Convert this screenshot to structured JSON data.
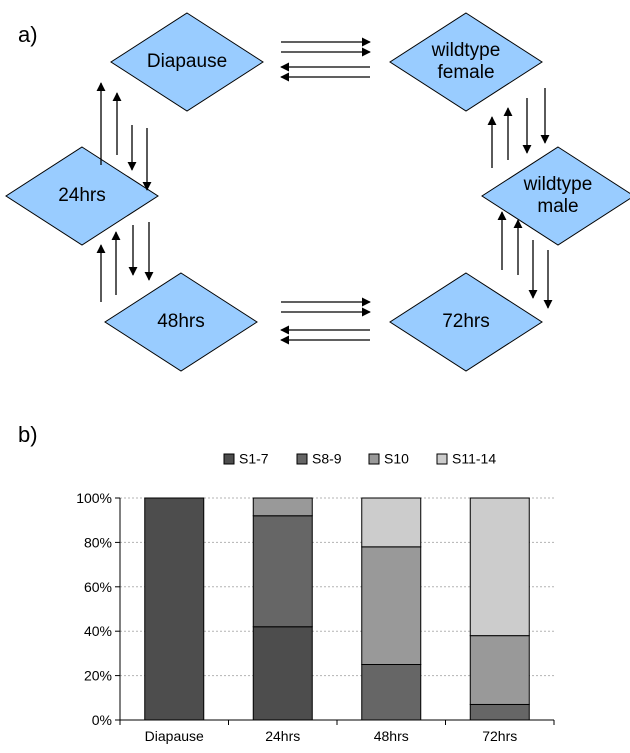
{
  "panels": {
    "a": "a)",
    "b": "b)"
  },
  "diagram": {
    "nodes": [
      {
        "id": "diapause",
        "lines": [
          "Diapause"
        ]
      },
      {
        "id": "wildtype-female",
        "lines": [
          "wildtype",
          "female"
        ]
      },
      {
        "id": "24hrs",
        "lines": [
          "24hrs"
        ]
      },
      {
        "id": "wildtype-male",
        "lines": [
          "wildtype",
          "male"
        ]
      },
      {
        "id": "48hrs",
        "lines": [
          "48hrs"
        ]
      },
      {
        "id": "72hrs",
        "lines": [
          "72hrs"
        ]
      }
    ],
    "node_color": "#99CCFF"
  },
  "chart_data": {
    "type": "bar",
    "stacked": true,
    "categories": [
      "Diapause",
      "24hrs",
      "48hrs",
      "72hrs"
    ],
    "series": [
      {
        "name": "S1-7",
        "color": "#4D4D4D",
        "values": [
          100,
          42,
          0,
          0
        ]
      },
      {
        "name": "S8-9",
        "color": "#666666",
        "values": [
          0,
          50,
          25,
          7
        ]
      },
      {
        "name": "S10",
        "color": "#999999",
        "values": [
          0,
          8,
          53,
          31
        ]
      },
      {
        "name": "S11-14",
        "color": "#CCCCCC",
        "values": [
          0,
          0,
          22,
          62
        ]
      }
    ],
    "ylim": [
      0,
      100
    ],
    "yticks": [
      "0%",
      "20%",
      "40%",
      "60%",
      "80%",
      "100%"
    ],
    "legend": "top",
    "grid": true
  }
}
